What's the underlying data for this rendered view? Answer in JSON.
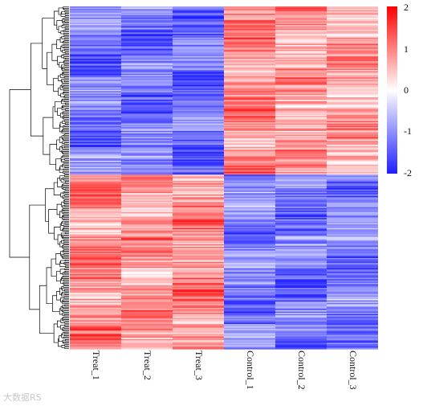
{
  "chart_data": {
    "type": "heatmap",
    "columns": [
      "Treat_1",
      "Treat_2",
      "Treat_3",
      "Control_1",
      "Control_2",
      "Control_3"
    ],
    "row_clusters": [
      {
        "rows": 135,
        "mean": [
          -1.2,
          -1.2,
          -1.25,
          0.9,
          0.7,
          0.7
        ]
      },
      {
        "rows": 140,
        "mean": [
          0.9,
          0.8,
          0.9,
          -1.1,
          -1.2,
          -1.15
        ]
      }
    ],
    "row_profile_notes": "rows clustered into two groups; upper group up in Control, lower group up in Treat",
    "color_scale": {
      "min": -2,
      "max": 2,
      "low": "#1f1fff",
      "mid": "#ffffff",
      "high": "#ff0000"
    },
    "colorbar_ticks": [
      "2",
      "1",
      "0",
      "-1",
      "-2"
    ],
    "dendrogram": "left, row clustering"
  },
  "watermark": "大数据RS"
}
